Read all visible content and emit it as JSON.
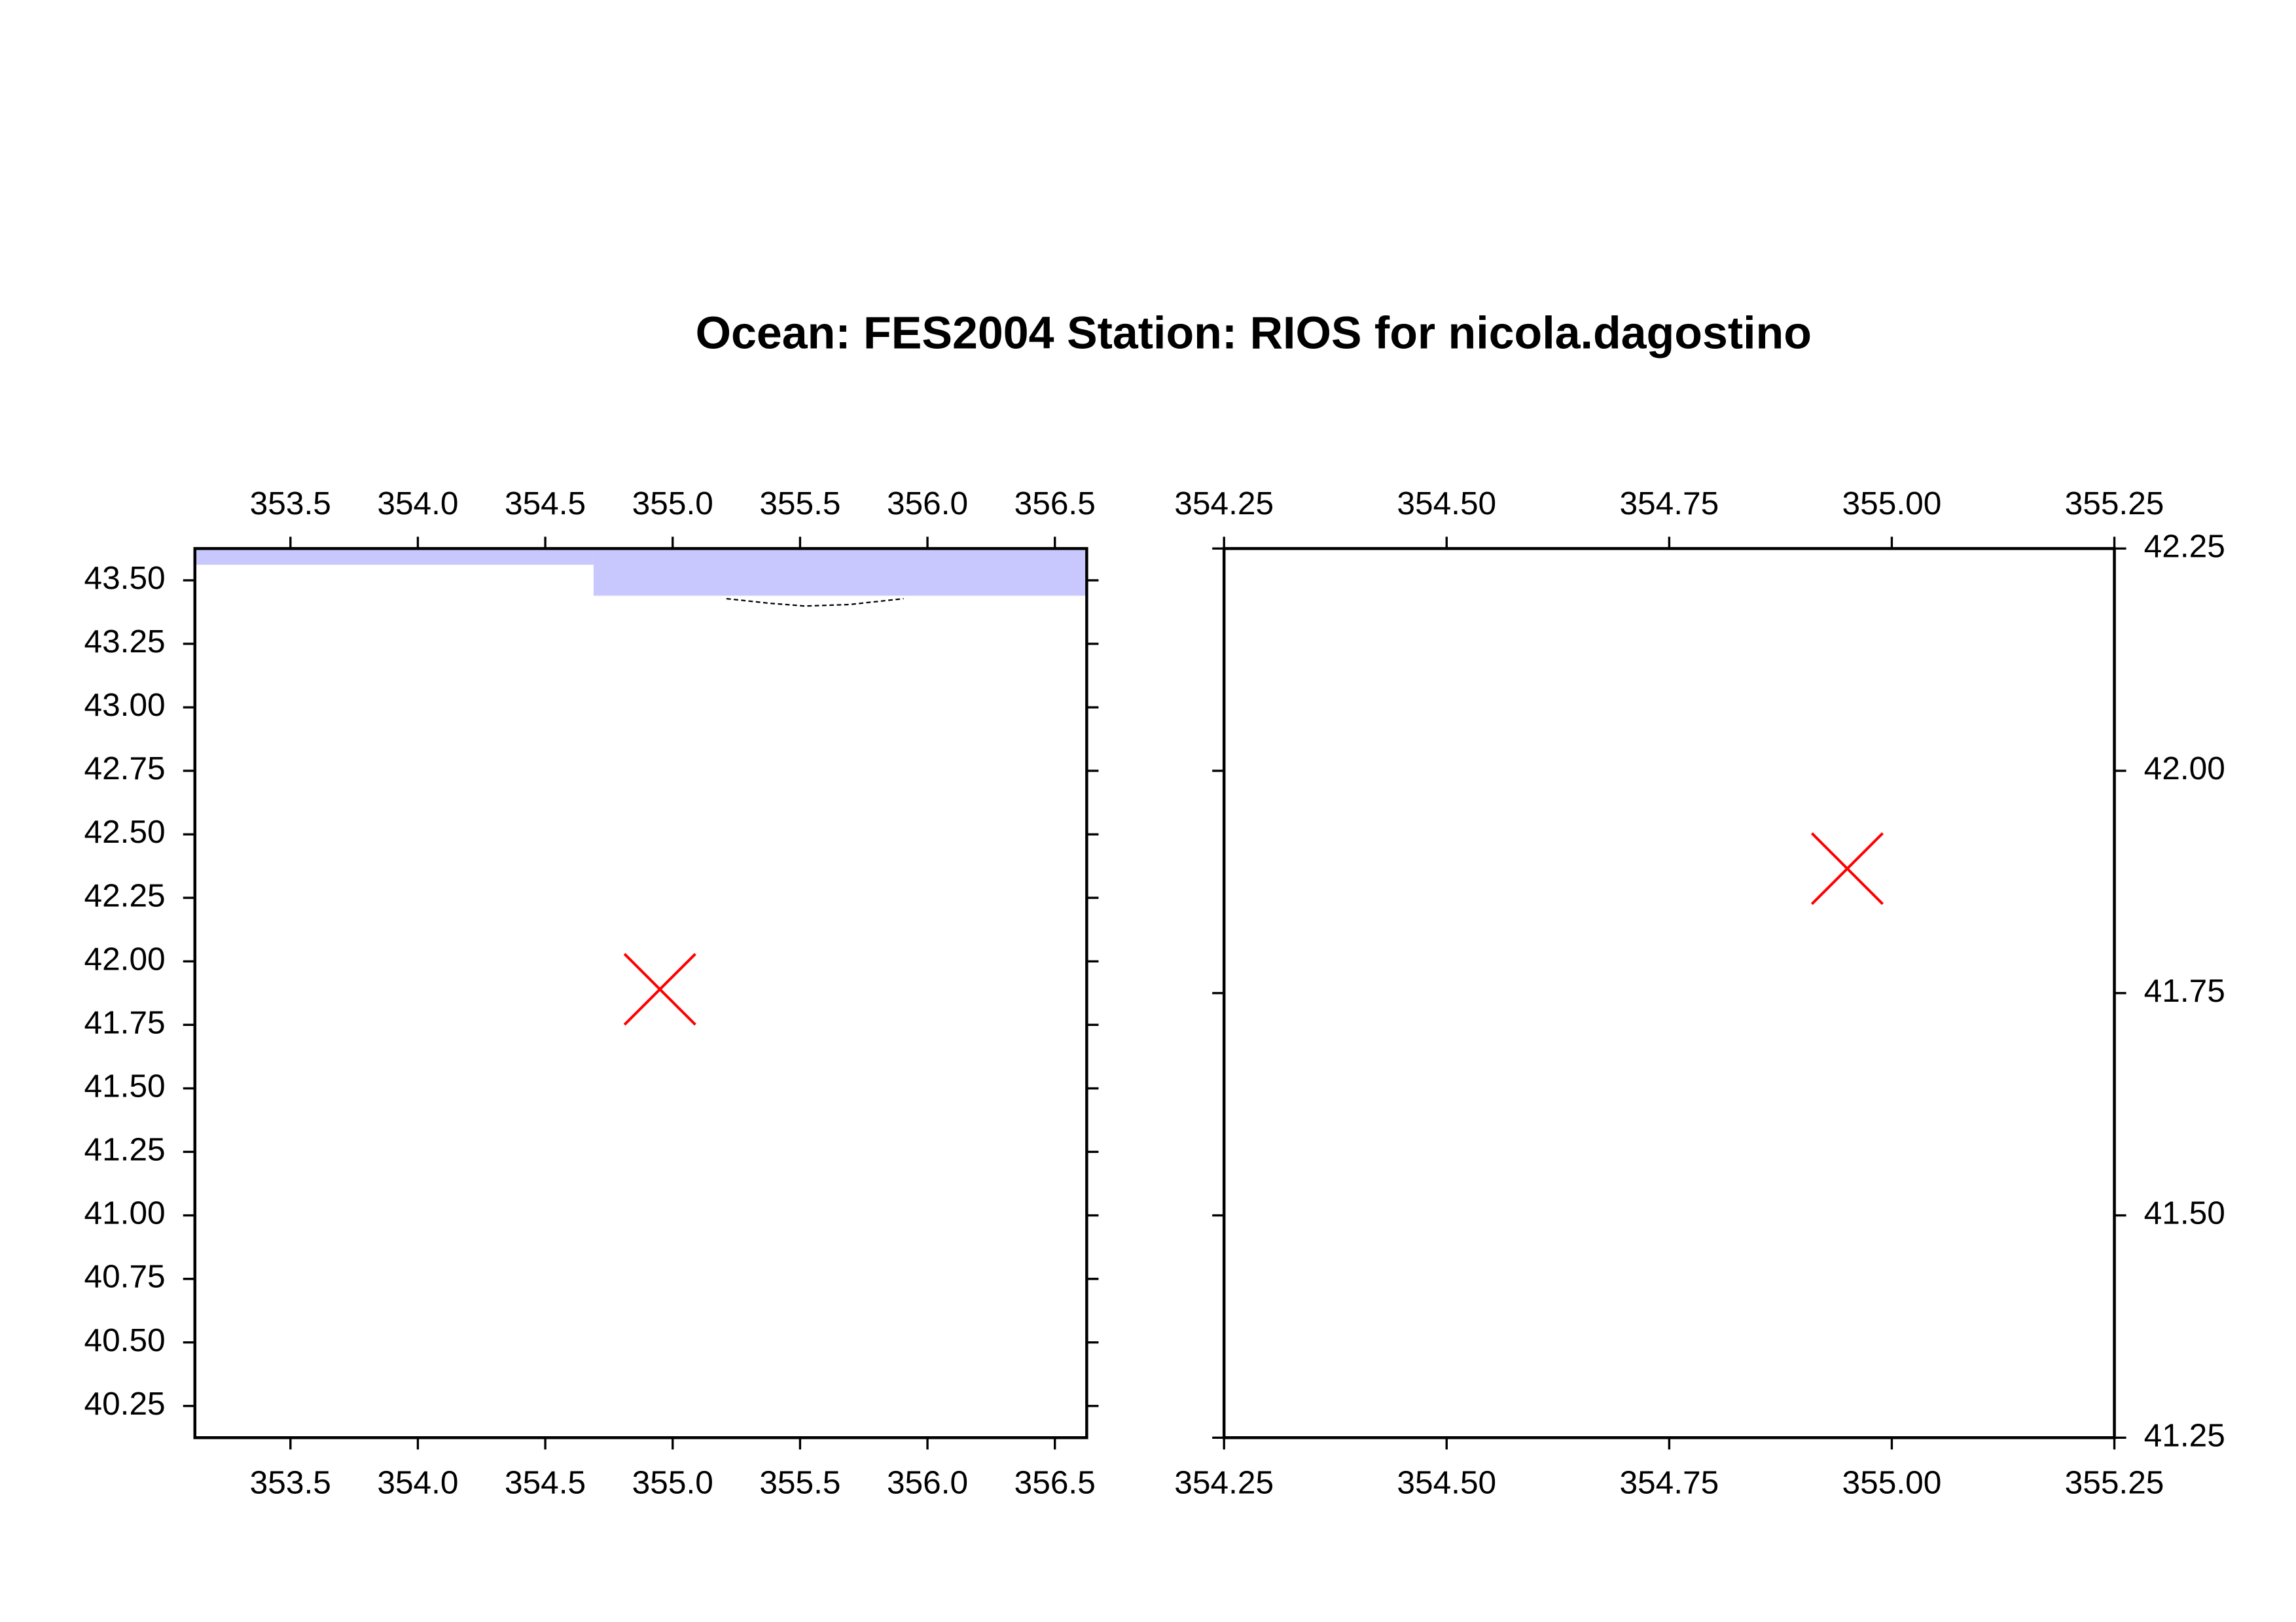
{
  "title": "Ocean: FES2004  Station: RIOS  for nicola.dagostino",
  "chart_data": [
    {
      "type": "scatter",
      "xlim": [
        353.125,
        356.625
      ],
      "ylim": [
        40.125,
        43.625
      ],
      "xticks": [
        353.5,
        {
          "value": 354,
          "label": "354.0"
        },
        354.5,
        {
          "value": 355,
          "label": "355.0"
        },
        355.5,
        {
          "value": 356,
          "label": "356.0"
        },
        356.5
      ],
      "yticks": [
        {
          "value": 40.25,
          "label": "40.25"
        },
        {
          "value": 40.5,
          "label": "40.50"
        },
        {
          "value": 40.75,
          "label": "40.75"
        },
        {
          "value": 41,
          "label": "41.00"
        },
        {
          "value": 41.25,
          "label": "41.25"
        },
        {
          "value": 41.5,
          "label": "41.50"
        },
        {
          "value": 41.75,
          "label": "41.75"
        },
        {
          "value": 42,
          "label": "42.00"
        },
        {
          "value": 42.25,
          "label": "42.25"
        },
        {
          "value": 42.5,
          "label": "42.50"
        },
        {
          "value": 42.75,
          "label": "42.75"
        },
        {
          "value": 43,
          "label": "43.00"
        },
        {
          "value": 43.25,
          "label": "43.25"
        },
        {
          "value": 43.5,
          "label": "43.50"
        }
      ],
      "yaxis_side": "left",
      "x": [
        354.95
      ],
      "y": [
        41.89
      ],
      "color": "#ff0000"
    },
    {
      "type": "scatter",
      "xlim": [
        354.25,
        355.25
      ],
      "ylim": [
        41.25,
        42.25
      ],
      "xticks": [
        354.25,
        {
          "value": 354.5,
          "label": "354.50"
        },
        354.75,
        {
          "value": 355,
          "label": "355.00"
        },
        355.25
      ],
      "yticks": [
        41.25,
        {
          "value": 41.5,
          "label": "41.50"
        },
        41.75,
        {
          "value": 42,
          "label": "42.00"
        },
        42.25
      ],
      "yaxis_side": "right",
      "x": [
        354.95
      ],
      "y": [
        41.89
      ],
      "color": "#ff0000"
    }
  ]
}
